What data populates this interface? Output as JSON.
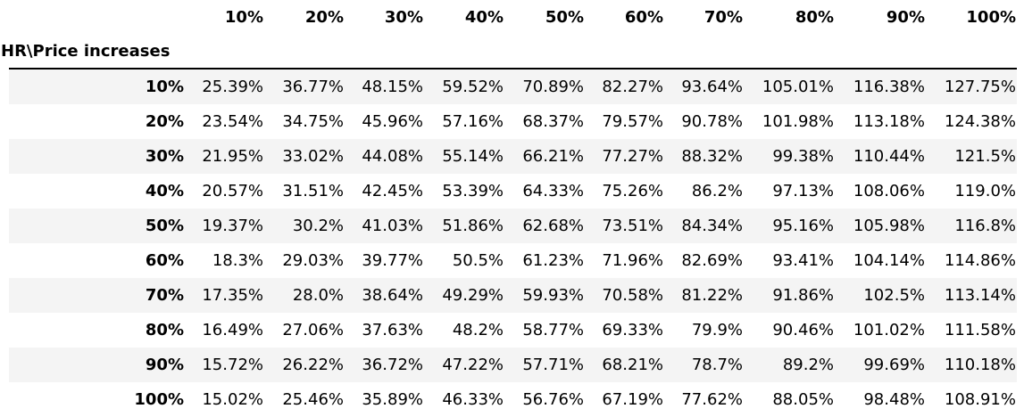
{
  "chart_data": {
    "type": "table",
    "index_name": "HR\\Price increases",
    "columns": [
      "10%",
      "20%",
      "30%",
      "40%",
      "50%",
      "60%",
      "70%",
      "80%",
      "90%",
      "100%"
    ],
    "rows": [
      {
        "label": "10%",
        "values": [
          "25.39%",
          "36.77%",
          "48.15%",
          "59.52%",
          "70.89%",
          "82.27%",
          "93.64%",
          "105.01%",
          "116.38%",
          "127.75%"
        ]
      },
      {
        "label": "20%",
        "values": [
          "23.54%",
          "34.75%",
          "45.96%",
          "57.16%",
          "68.37%",
          "79.57%",
          "90.78%",
          "101.98%",
          "113.18%",
          "124.38%"
        ]
      },
      {
        "label": "30%",
        "values": [
          "21.95%",
          "33.02%",
          "44.08%",
          "55.14%",
          "66.21%",
          "77.27%",
          "88.32%",
          "99.38%",
          "110.44%",
          "121.5%"
        ]
      },
      {
        "label": "40%",
        "values": [
          "20.57%",
          "31.51%",
          "42.45%",
          "53.39%",
          "64.33%",
          "75.26%",
          "86.2%",
          "97.13%",
          "108.06%",
          "119.0%"
        ]
      },
      {
        "label": "50%",
        "values": [
          "19.37%",
          "30.2%",
          "41.03%",
          "51.86%",
          "62.68%",
          "73.51%",
          "84.34%",
          "95.16%",
          "105.98%",
          "116.8%"
        ]
      },
      {
        "label": "60%",
        "values": [
          "18.3%",
          "29.03%",
          "39.77%",
          "50.5%",
          "61.23%",
          "71.96%",
          "82.69%",
          "93.41%",
          "104.14%",
          "114.86%"
        ]
      },
      {
        "label": "70%",
        "values": [
          "17.35%",
          "28.0%",
          "38.64%",
          "49.29%",
          "59.93%",
          "70.58%",
          "81.22%",
          "91.86%",
          "102.5%",
          "113.14%"
        ]
      },
      {
        "label": "80%",
        "values": [
          "16.49%",
          "27.06%",
          "37.63%",
          "48.2%",
          "58.77%",
          "69.33%",
          "79.9%",
          "90.46%",
          "101.02%",
          "111.58%"
        ]
      },
      {
        "label": "90%",
        "values": [
          "15.72%",
          "26.22%",
          "36.72%",
          "47.22%",
          "57.71%",
          "68.21%",
          "78.7%",
          "89.2%",
          "99.69%",
          "110.18%"
        ]
      },
      {
        "label": "100%",
        "values": [
          "15.02%",
          "25.46%",
          "35.89%",
          "46.33%",
          "56.76%",
          "67.19%",
          "77.62%",
          "88.05%",
          "98.48%",
          "108.91%"
        ]
      }
    ],
    "colors": {
      "stripe": "#f4f4f4",
      "rule": "#000000",
      "text": "#000000"
    }
  }
}
